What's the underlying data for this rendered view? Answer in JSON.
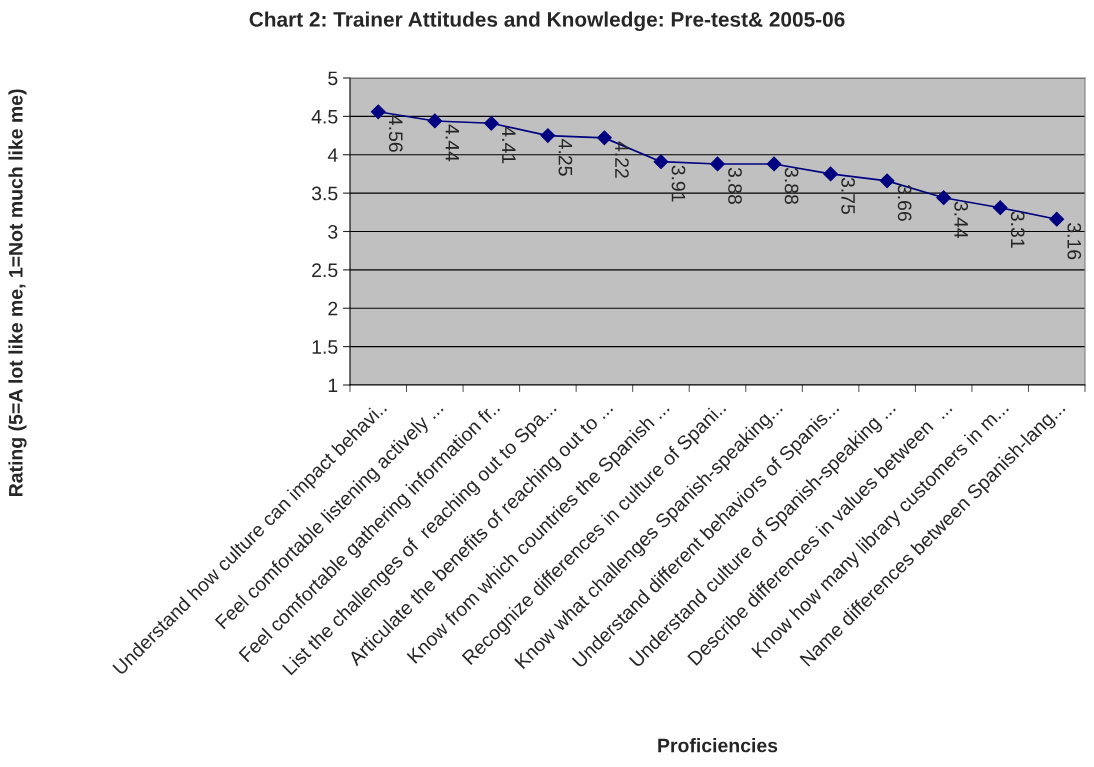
{
  "chart_data": {
    "type": "line",
    "title": "Chart 2: Trainer Attitudes and Knowledge: Pre-test& 2005-06",
    "xlabel": "Proficiencies",
    "ylabel": "Rating (5=A lot like me, 1=Not much like me)",
    "categories": [
      "Understand how culture can impact behavi..",
      "Feel comfortable listening actively ...",
      "Feel comfortable gathering information fr..",
      "List the challenges of  reaching out to Spa...",
      "Articulate the benefits of reaching out to ...",
      "Know from which countries the Spanish ...",
      "Recognize differences in culture of Spani..",
      "Know what challenges Spanish-speaking...",
      "Understand different behaviors of Spanis...",
      "Understand culture of Spanish-speaking ...",
      "Describe differences in values between  ...",
      "Know how many library customers in m...",
      "Name differences between Spanish-lang..."
    ],
    "series": [
      {
        "color": "#000080",
        "values": [
          4.56,
          4.44,
          4.41,
          4.25,
          4.22,
          3.91,
          3.88,
          3.88,
          3.75,
          3.66,
          3.44,
          3.31,
          3.16
        ]
      }
    ],
    "ylim": [
      1,
      5
    ],
    "yticks": [
      1,
      1.5,
      2,
      2.5,
      3,
      3.5,
      4,
      4.5,
      5
    ],
    "grid": "y",
    "marker": "diamond",
    "data_labels": true,
    "legend": false
  }
}
